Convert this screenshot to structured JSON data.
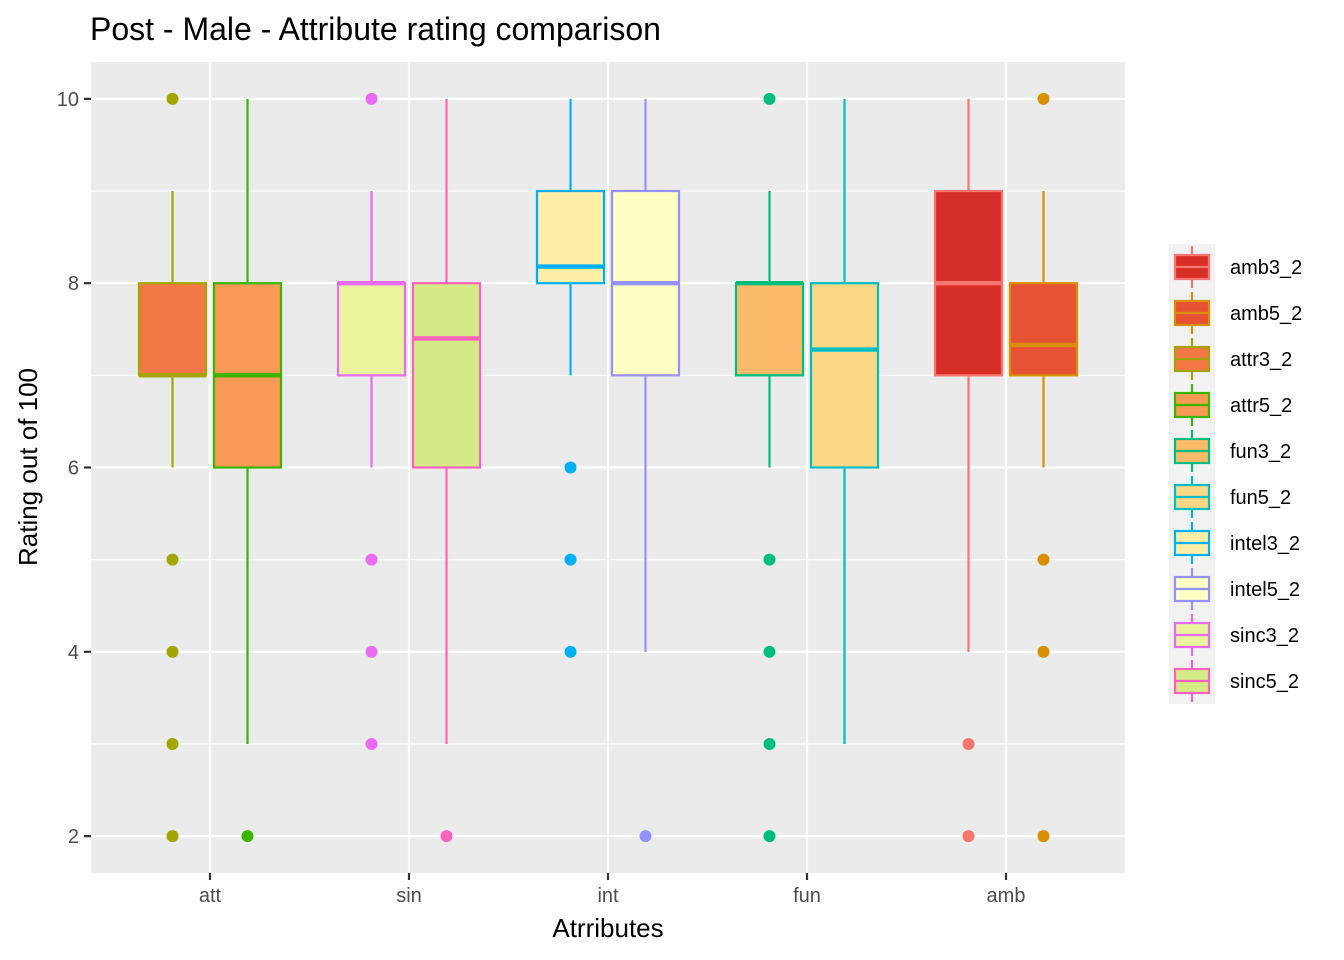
{
  "chart_data": {
    "type": "boxplot",
    "title": "Post - Male - Attribute rating comparison",
    "xlabel": "Atrributes",
    "ylabel": "Rating out of 100",
    "categories": [
      "att",
      "sin",
      "int",
      "fun",
      "amb"
    ],
    "ylim": [
      1.6,
      10.4
    ],
    "yticks": [
      2,
      4,
      6,
      8,
      10
    ],
    "grid": true,
    "legend_position": "right",
    "series": [
      {
        "name": "attr3_2",
        "category": "att",
        "slot": 0,
        "stroke": "#a3a500",
        "fill": "#f47846",
        "whisker_low": 6,
        "q1": 7,
        "median": 7,
        "q3": 8,
        "whisker_high": 9,
        "outliers": [
          10,
          5,
          4,
          3,
          2
        ]
      },
      {
        "name": "attr5_2",
        "category": "att",
        "slot": 1,
        "stroke": "#39b600",
        "fill": "#f89a55",
        "whisker_low": 3,
        "q1": 6,
        "median": 7,
        "q3": 8,
        "whisker_high": 10,
        "outliers": [
          2
        ]
      },
      {
        "name": "sinc3_2",
        "category": "sin",
        "slot": 0,
        "stroke": "#e76bf3",
        "fill": "#e9f49c",
        "whisker_low": 6,
        "q1": 7,
        "median": 8,
        "q3": 8,
        "whisker_high": 9,
        "outliers": [
          10,
          5,
          4,
          3
        ]
      },
      {
        "name": "sinc5_2",
        "category": "sin",
        "slot": 1,
        "stroke": "#ff62bc",
        "fill": "#d4ea86",
        "whisker_low": 3,
        "q1": 6,
        "median": 7.4,
        "q3": 8,
        "whisker_high": 10,
        "outliers": [
          2
        ]
      },
      {
        "name": "intel3_2",
        "category": "int",
        "slot": 0,
        "stroke": "#00b0f6",
        "fill": "#ffeea5",
        "whisker_low": 7,
        "q1": 8,
        "median": 8.18,
        "q3": 9,
        "whisker_high": 10,
        "outliers": [
          6,
          5,
          4
        ]
      },
      {
        "name": "intel5_2",
        "category": "int",
        "slot": 1,
        "stroke": "#9590ff",
        "fill": "#ffffc3",
        "whisker_low": 4,
        "q1": 7,
        "median": 8,
        "q3": 9,
        "whisker_high": 10,
        "outliers": [
          2
        ]
      },
      {
        "name": "fun3_2",
        "category": "fun",
        "slot": 0,
        "stroke": "#00bf7d",
        "fill": "#fdba6b",
        "whisker_low": 6,
        "q1": 7,
        "median": 8,
        "q3": 8,
        "whisker_high": 9,
        "outliers": [
          10,
          5,
          4,
          3,
          2
        ]
      },
      {
        "name": "fun5_2",
        "category": "fun",
        "slot": 1,
        "stroke": "#00bfc4",
        "fill": "#fcd785",
        "whisker_low": 3,
        "q1": 6,
        "median": 7.28,
        "q3": 8,
        "whisker_high": 10,
        "outliers": []
      },
      {
        "name": "amb3_2",
        "category": "amb",
        "slot": 0,
        "stroke": "#f8766d",
        "fill": "#d62f27",
        "whisker_low": 4,
        "q1": 7,
        "median": 8,
        "q3": 9,
        "whisker_high": 10,
        "outliers": [
          3,
          2
        ]
      },
      {
        "name": "amb5_2",
        "category": "amb",
        "slot": 1,
        "stroke": "#d89000",
        "fill": "#e65233",
        "whisker_low": 6,
        "q1": 7,
        "median": 7.33,
        "q3": 8,
        "whisker_high": 9,
        "outliers": [
          10,
          5,
          4,
          2
        ]
      }
    ],
    "legend_order": [
      "amb3_2",
      "amb5_2",
      "attr3_2",
      "attr5_2",
      "fun3_2",
      "fun5_2",
      "intel3_2",
      "intel5_2",
      "sinc3_2",
      "sinc5_2"
    ]
  },
  "colors": {
    "panel_background": "#ebebeb",
    "grid_line": "#ffffff",
    "tick_label": "#4d4d4d"
  }
}
